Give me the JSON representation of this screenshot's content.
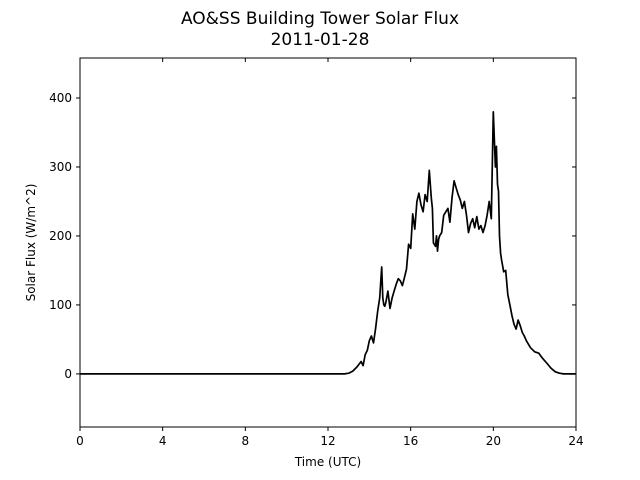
{
  "chart_data": {
    "type": "line",
    "title": "AO&SS Building Tower Solar Flux",
    "subtitle": "2011-01-28",
    "xlabel": "Time (UTC)",
    "ylabel": "Solar Flux (W/m^2)",
    "xlim": [
      0,
      24
    ],
    "ylim": [
      -77,
      458
    ],
    "xticks": [
      0,
      4,
      8,
      12,
      16,
      20,
      24
    ],
    "yticks": [
      0,
      100,
      200,
      300,
      400
    ],
    "grid": false,
    "legend": "none",
    "line_color": "#000000",
    "series": [
      {
        "x": [
          0,
          12.8,
          13.0,
          13.2,
          13.4,
          13.6,
          13.7,
          13.8,
          13.9,
          14.0,
          14.1,
          14.2,
          14.3,
          14.4,
          14.5,
          14.6,
          14.65,
          14.7,
          14.75,
          14.8,
          14.9,
          15.0,
          15.1,
          15.2,
          15.3,
          15.4,
          15.5,
          15.6,
          15.7,
          15.8,
          15.9,
          16.0,
          16.1,
          16.2,
          16.3,
          16.4,
          16.5,
          16.6,
          16.7,
          16.8,
          16.9,
          17.0,
          17.05,
          17.1,
          17.2,
          17.25,
          17.3,
          17.35,
          17.4,
          17.5,
          17.6,
          17.7,
          17.8,
          17.9,
          18.0,
          18.1,
          18.2,
          18.3,
          18.4,
          18.5,
          18.6,
          18.7,
          18.8,
          18.9,
          19.0,
          19.1,
          19.2,
          19.3,
          19.4,
          19.5,
          19.6,
          19.7,
          19.8,
          19.9,
          20.0,
          20.1,
          20.15,
          20.2,
          20.25,
          20.3,
          20.35,
          20.4,
          20.5,
          20.6,
          20.7,
          20.8,
          20.9,
          21.0,
          21.1,
          21.2,
          21.3,
          21.4,
          21.5,
          21.6,
          21.8,
          22.0,
          22.2,
          22.4,
          22.6,
          22.8,
          23.0,
          23.2,
          23.4,
          24.0
        ],
        "y": [
          0,
          0,
          1,
          4,
          10,
          18,
          12,
          28,
          34,
          48,
          55,
          45,
          65,
          90,
          110,
          155,
          110,
          100,
          98,
          104,
          120,
          95,
          110,
          120,
          130,
          138,
          135,
          128,
          140,
          152,
          188,
          182,
          232,
          210,
          250,
          262,
          245,
          235,
          260,
          250,
          295,
          255,
          240,
          190,
          185,
          200,
          178,
          195,
          200,
          205,
          230,
          235,
          240,
          220,
          255,
          280,
          270,
          260,
          252,
          240,
          250,
          230,
          205,
          218,
          225,
          212,
          228,
          210,
          215,
          205,
          215,
          230,
          250,
          225,
          380,
          300,
          330,
          275,
          265,
          200,
          175,
          165,
          148,
          150,
          115,
          100,
          85,
          72,
          65,
          78,
          70,
          60,
          55,
          48,
          38,
          32,
          30,
          22,
          15,
          8,
          3,
          1,
          0,
          0
        ]
      }
    ]
  }
}
